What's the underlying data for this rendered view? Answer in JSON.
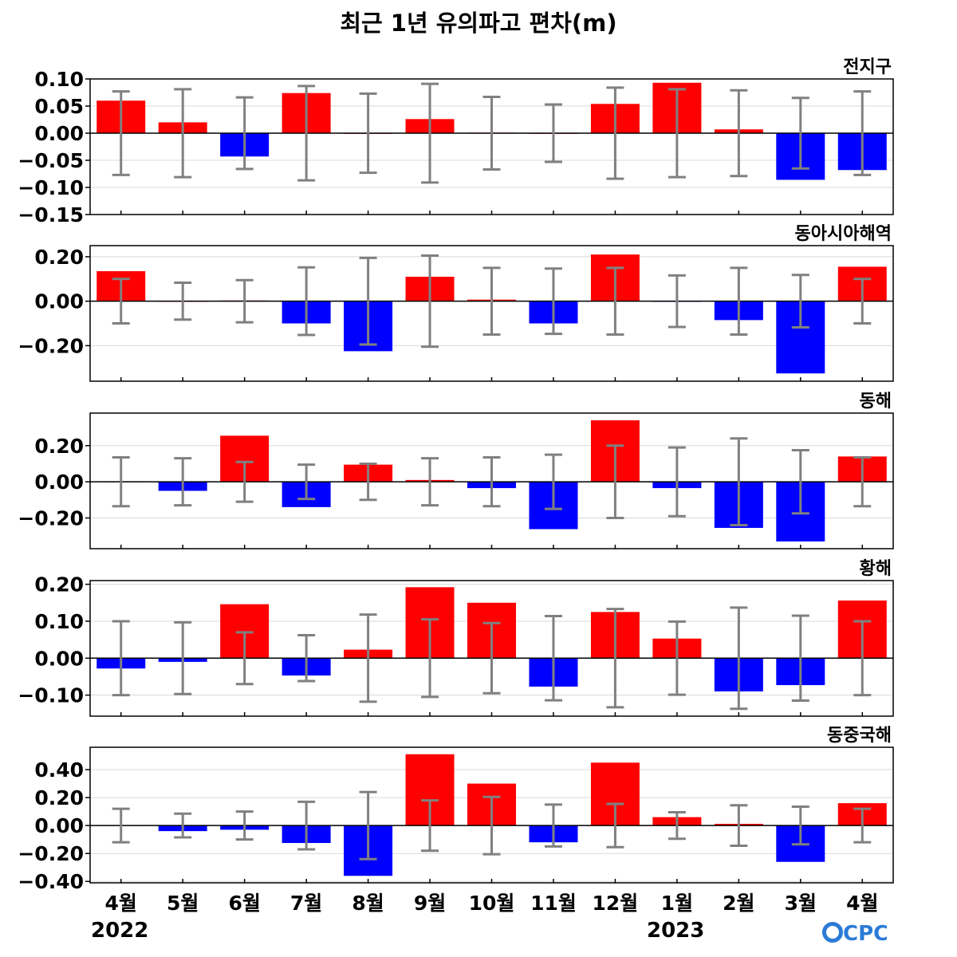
{
  "title": "최근 1년 유의파고 편차(m)",
  "x_categories": [
    "4월",
    "5월",
    "6월",
    "7월",
    "8월",
    "9월",
    "10월",
    "11월",
    "12월",
    "1월",
    "2월",
    "3월",
    "4월"
  ],
  "year_labels": [
    "2022",
    "2023"
  ],
  "logo": {
    "text": "OCPC",
    "color": "#2b7bd6"
  },
  "colors": {
    "positive": "#ff0000",
    "negative": "#0000ff",
    "errorbar": "#808080",
    "grid": "#d9d9d9"
  },
  "chart_data": [
    {
      "type": "bar",
      "title": "전지구",
      "categories": [
        "4월",
        "5월",
        "6월",
        "7월",
        "8월",
        "9월",
        "10월",
        "11월",
        "12월",
        "1월",
        "2월",
        "3월",
        "4월"
      ],
      "values": [
        0.06,
        0.02,
        -0.043,
        0.074,
        0.0,
        0.026,
        0.001,
        0.0,
        0.054,
        0.093,
        0.007,
        -0.086,
        -0.068
      ],
      "error": [
        0.077,
        0.081,
        0.066,
        0.087,
        0.073,
        0.091,
        0.067,
        0.053,
        0.084,
        0.081,
        0.079,
        0.065,
        0.077
      ],
      "ylim": [
        -0.15,
        0.1
      ],
      "yticks": [
        "0.10",
        "0.05",
        "0.00",
        "−0.05",
        "−0.10",
        "−0.15"
      ],
      "grid": true
    },
    {
      "type": "bar",
      "title": "동아시아해역",
      "categories": [
        "4월",
        "5월",
        "6월",
        "7월",
        "8월",
        "9월",
        "10월",
        "11월",
        "12월",
        "1월",
        "2월",
        "3월",
        "4월"
      ],
      "values": [
        0.135,
        0.0,
        0.003,
        -0.1,
        -0.225,
        0.11,
        0.007,
        -0.1,
        0.21,
        -0.003,
        -0.085,
        -0.325,
        0.155
      ],
      "error": [
        0.1,
        0.083,
        0.095,
        0.152,
        0.195,
        0.205,
        0.15,
        0.147,
        0.15,
        0.116,
        0.15,
        0.118,
        0.1
      ],
      "ylim": [
        -0.36,
        0.25
      ],
      "yticks": [
        "0.20",
        "0.00",
        "−0.20"
      ],
      "grid": true
    },
    {
      "type": "bar",
      "title": "동해",
      "categories": [
        "4월",
        "5월",
        "6월",
        "7월",
        "8월",
        "9월",
        "10월",
        "11월",
        "12월",
        "1월",
        "2월",
        "3월",
        "4월"
      ],
      "values": [
        0.003,
        -0.05,
        0.255,
        -0.14,
        0.095,
        0.01,
        -0.035,
        -0.262,
        0.34,
        -0.035,
        -0.255,
        -0.33,
        0.14
      ],
      "error": [
        0.135,
        0.13,
        0.11,
        0.095,
        0.1,
        0.13,
        0.135,
        0.15,
        0.2,
        0.19,
        0.24,
        0.175,
        0.135
      ],
      "ylim": [
        -0.37,
        0.38
      ],
      "yticks": [
        "0.20",
        "0.00",
        "−0.20"
      ],
      "grid": true
    },
    {
      "type": "bar",
      "title": "황해",
      "categories": [
        "4월",
        "5월",
        "6월",
        "7월",
        "8월",
        "9월",
        "10월",
        "11월",
        "12월",
        "1월",
        "2월",
        "3월",
        "4월"
      ],
      "values": [
        -0.028,
        -0.01,
        0.146,
        -0.047,
        0.023,
        0.192,
        0.15,
        -0.077,
        0.125,
        0.053,
        -0.09,
        -0.073,
        0.156
      ],
      "error": [
        0.1,
        0.097,
        0.07,
        0.062,
        0.118,
        0.105,
        0.095,
        0.114,
        0.133,
        0.099,
        0.137,
        0.115,
        0.1
      ],
      "ylim": [
        -0.157,
        0.21
      ],
      "yticks": [
        "0.20",
        "0.10",
        "0.00",
        "−0.10"
      ],
      "grid": true
    },
    {
      "type": "bar",
      "title": "동중국해",
      "categories": [
        "4월",
        "5월",
        "6월",
        "7월",
        "8월",
        "9월",
        "10월",
        "11월",
        "12월",
        "1월",
        "2월",
        "3월",
        "4월"
      ],
      "values": [
        0.002,
        -0.04,
        -0.03,
        -0.125,
        -0.36,
        0.51,
        0.3,
        -0.12,
        0.45,
        0.06,
        0.012,
        -0.26,
        0.16
      ],
      "error": [
        0.12,
        0.085,
        0.1,
        0.17,
        0.24,
        0.18,
        0.205,
        0.15,
        0.155,
        0.095,
        0.145,
        0.135,
        0.12
      ],
      "ylim": [
        -0.41,
        0.56
      ],
      "yticks": [
        "0.40",
        "0.20",
        "0.00",
        "−0.20",
        "−0.40"
      ],
      "grid": true
    }
  ]
}
